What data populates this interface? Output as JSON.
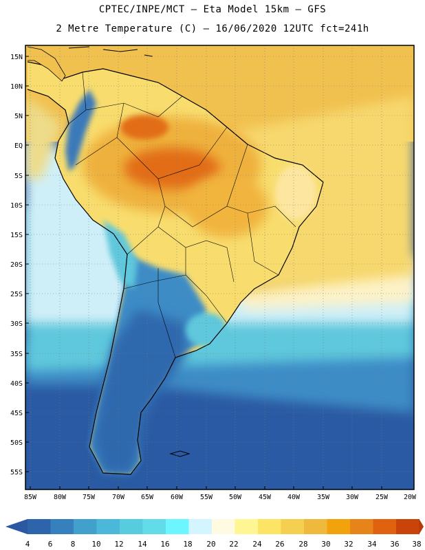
{
  "header": {
    "line1": "CPTEC/INPE/MCT –  Eta Model 15km – GFS",
    "line2": "2 Metre Temperature (C) – 16/06/2020 12UTC fct=241h"
  },
  "axes": {
    "lat_labels": [
      "15N",
      "10N",
      "5N",
      "EQ",
      "5S",
      "10S",
      "15S",
      "20S",
      "25S",
      "30S",
      "35S",
      "40S",
      "45S",
      "50S",
      "55S"
    ],
    "lon_labels": [
      "85W",
      "80W",
      "75W",
      "70W",
      "65W",
      "60W",
      "55W",
      "50W",
      "45W",
      "40W",
      "35W",
      "30W",
      "25W",
      "20W"
    ]
  },
  "colorbar": {
    "labels": [
      "4",
      "6",
      "8",
      "10",
      "12",
      "14",
      "16",
      "18",
      "20",
      "22",
      "24",
      "26",
      "28",
      "30",
      "32",
      "34",
      "36",
      "38"
    ],
    "colors": [
      "#2e64ab",
      "#3580bd",
      "#41a0cc",
      "#4bb8da",
      "#58ccdf",
      "#62dce8",
      "#6cf6ff",
      "#d4f5ff",
      "#fffae2",
      "#fef693",
      "#fce565",
      "#f5cf4f",
      "#eeb93d",
      "#f1a20c",
      "#e6841a",
      "#e0620e",
      "#c94409"
    ],
    "under_color": "#2b58a1",
    "over_color": "#b53a0a"
  },
  "palette": {
    "ocean_deep": "#2a5aa3",
    "ocean_mid": "#3d8cc6",
    "ocean_cyan": "#5ec8dc",
    "ocean_light": "#d6f4fb",
    "ocean_warm": "#fdf4d0",
    "land_yellow": "#f8dd6e",
    "land_orange": "#efb13c",
    "land_hot": "#e26d16",
    "andes_cold": "#3b79ba",
    "patagonia": "#2f68ad",
    "coast_line": "#000000",
    "grid_line": "#9a9a9a"
  }
}
